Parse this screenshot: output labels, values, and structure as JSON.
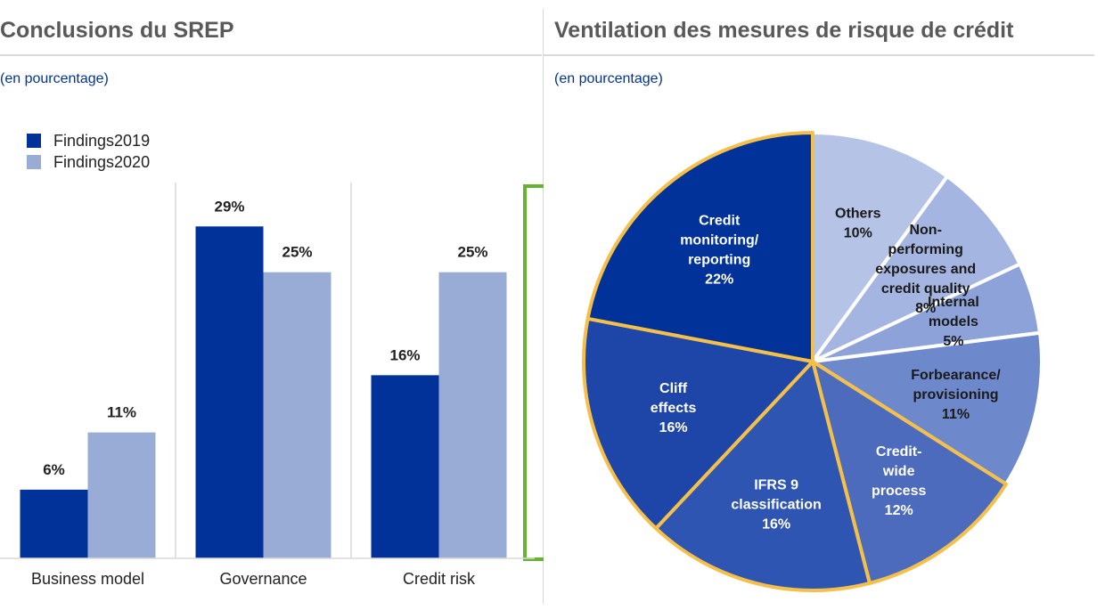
{
  "left_panel": {
    "title": "Conclusions du SREP",
    "subtitle": "(en pourcentage)"
  },
  "right_panel": {
    "title": "Ventilation des mesures de risque de crédit",
    "subtitle": "(en pourcentage)"
  },
  "chart_data": [
    {
      "type": "bar",
      "title": "Conclusions du SREP",
      "subtitle": "(en pourcentage)",
      "categories": [
        "Business model",
        "Governance",
        "Credit risk"
      ],
      "series": [
        {
          "name": "Findings2019",
          "values": [
            6,
            29,
            16
          ],
          "labels": [
            "6%",
            "29%",
            "16%"
          ],
          "color": "#003299"
        },
        {
          "name": "Findings2020",
          "values": [
            11,
            25,
            25
          ],
          "labels": [
            "11%",
            "25%",
            "25%"
          ],
          "color": "#99acd6"
        }
      ],
      "ylim": [
        0,
        34
      ],
      "legend": "top-left",
      "grid": false,
      "highlight": {
        "category": "Credit risk",
        "color": "#65b32e"
      }
    },
    {
      "type": "pie",
      "title": "Ventilation des mesures de risque de crédit",
      "subtitle": "(en pourcentage)",
      "slices": [
        {
          "lines": [
            "Others",
            "10%"
          ],
          "value": 10,
          "color": "#b5c3e6",
          "text_color": "#1a1a1a",
          "highlight": false
        },
        {
          "lines": [
            "Non-",
            "performing",
            "exposures and",
            "credit quality",
            "8%"
          ],
          "value": 8,
          "color": "#a3b5e0",
          "text_color": "#1a1a1a",
          "highlight": false
        },
        {
          "lines": [
            "Internal",
            "models",
            "5%"
          ],
          "value": 5,
          "color": "#8ca2d8",
          "text_color": "#1a1a1a",
          "highlight": false
        },
        {
          "lines": [
            "Forbearance/",
            "provisioning",
            "11%"
          ],
          "value": 11,
          "color": "#6e88cc",
          "text_color": "#1a1a1a",
          "highlight": false
        },
        {
          "lines": [
            "Credit-",
            "wide",
            "process",
            "12%"
          ],
          "value": 12,
          "color": "#4d6bbd",
          "text_color": "#ffffff",
          "highlight": true
        },
        {
          "lines": [
            "IFRS 9",
            "classification",
            "16%"
          ],
          "value": 16,
          "color": "#2f55b3",
          "text_color": "#ffffff",
          "highlight": true
        },
        {
          "lines": [
            "Cliff",
            "effects",
            "16%"
          ],
          "value": 16,
          "color": "#1e46a8",
          "text_color": "#ffffff",
          "highlight": true
        },
        {
          "lines": [
            "Credit",
            "monitoring/",
            "reporting",
            "22%"
          ],
          "value": 22,
          "color": "#003299",
          "text_color": "#ffffff",
          "highlight": true
        }
      ],
      "highlight_color": "#f5c04a"
    }
  ]
}
